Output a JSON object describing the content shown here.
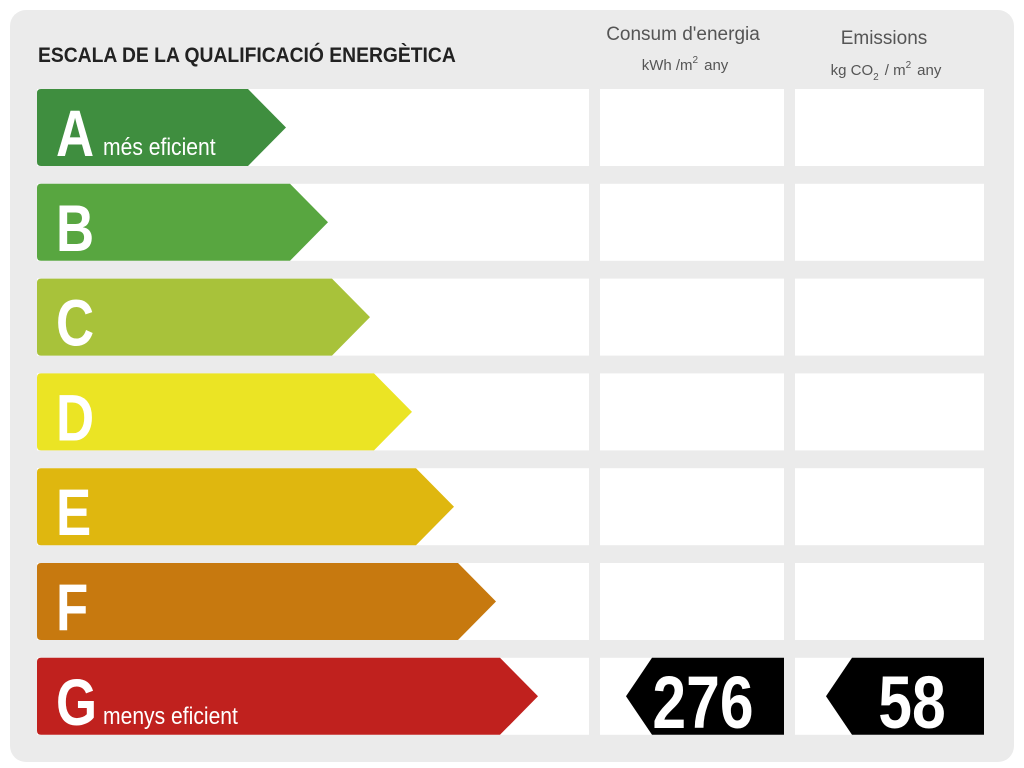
{
  "header": {
    "title": "ESCALA DE LA QUALIFICACIÓ ENERGÈTICA",
    "energy": {
      "label": "Consum d'energia",
      "unit": [
        "kWh /m",
        "2",
        "any"
      ]
    },
    "emissions": {
      "label": "Emissions",
      "unit": [
        "kg CO",
        "2",
        "/ m",
        "2",
        "any"
      ]
    }
  },
  "ratings": [
    {
      "letter": "A",
      "color": "#3f8e3f",
      "note": "més eficient"
    },
    {
      "letter": "B",
      "color": "#58a640"
    },
    {
      "letter": "C",
      "color": "#a8c23a"
    },
    {
      "letter": "D",
      "color": "#ebe424"
    },
    {
      "letter": "E",
      "color": "#dfb70f"
    },
    {
      "letter": "F",
      "color": "#c7790f"
    },
    {
      "letter": "G",
      "color": "#c0211e",
      "note": "menys eficient",
      "energy": 276,
      "emissions": 58
    }
  ]
}
